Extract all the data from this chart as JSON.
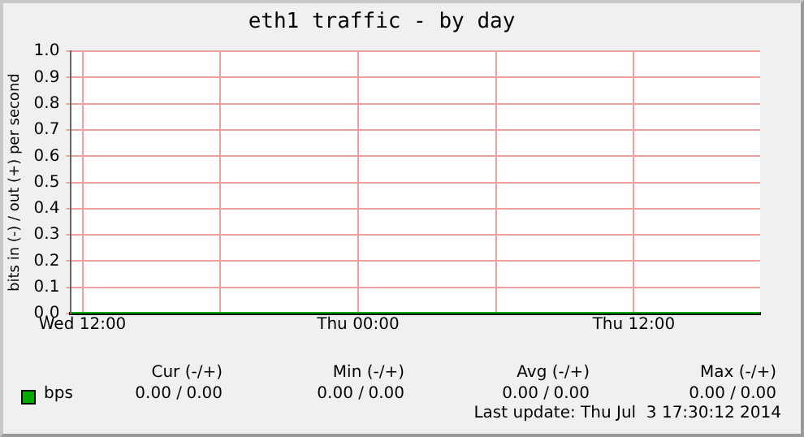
{
  "chart_data": {
    "type": "line",
    "title": "eth1 traffic - by day",
    "ylabel": "bits in (-) / out (+) per second",
    "x": [
      "2014-07-02T11:30",
      "2014-07-03T17:30"
    ],
    "series": [
      {
        "name": "bps",
        "color": "#00aa00",
        "values": [
          0,
          0
        ]
      }
    ],
    "xlim": [
      "2014-07-02T11:30",
      "2014-07-03T17:30"
    ],
    "xticks": [
      {
        "value": "2014-07-02T12:00",
        "label": "Wed 12:00"
      },
      {
        "value": "2014-07-02T18:00",
        "label": null
      },
      {
        "value": "2014-07-03T00:00",
        "label": "Thu 00:00"
      },
      {
        "value": "2014-07-03T06:00",
        "label": null
      },
      {
        "value": "2014-07-03T12:00",
        "label": "Thu 12:00"
      }
    ],
    "ylim": [
      0,
      1
    ],
    "yticks": [
      {
        "value": 0,
        "label": "0.0"
      },
      {
        "value": 0.1,
        "label": "0.1"
      },
      {
        "value": 0.2,
        "label": "0.2"
      },
      {
        "value": 0.3,
        "label": "0.3"
      },
      {
        "value": 0.4,
        "label": "0.4"
      },
      {
        "value": 0.5,
        "label": "0.5"
      },
      {
        "value": 0.6,
        "label": "0.6"
      },
      {
        "value": 0.7,
        "label": "0.7"
      },
      {
        "value": 0.8,
        "label": "0.8"
      },
      {
        "value": 0.9,
        "label": "0.9"
      },
      {
        "value": 1,
        "label": "1.0"
      }
    ],
    "grid": true,
    "legend": "bottom",
    "marker": "none",
    "line_style": "solid",
    "annotations": [
      "Cur (-/+)",
      "Min (-/+)",
      "Avg (-/+)",
      "Max (-/+)",
      "0.00 /",
      "0.00",
      "0.00 /",
      "0.00",
      "0.00 /",
      "0.00",
      "0.00 /",
      "0.00",
      "Last update: Thu Jul  3 17:30:12 2014"
    ]
  }
}
